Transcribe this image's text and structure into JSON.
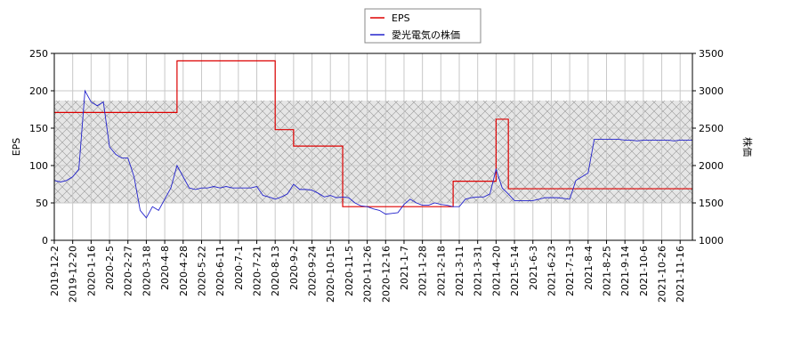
{
  "chart_data": {
    "type": "line",
    "y_label": "EPS",
    "y2_label": "株価",
    "legend": "top",
    "grid": true,
    "ylim": [
      0,
      250
    ],
    "yticks": [
      0,
      50,
      100,
      150,
      200,
      250
    ],
    "y2lim": [
      1000,
      3500
    ],
    "y2ticks": [
      1000,
      1500,
      2000,
      2500,
      3000,
      3500
    ],
    "categories": [
      "2019-12-2",
      null,
      null,
      "2019-12-20",
      null,
      null,
      "2020-1-16",
      null,
      null,
      "2020-2-5",
      null,
      null,
      "2020-2-27",
      null,
      null,
      "2020-3-18",
      null,
      null,
      "2020-4-8",
      null,
      null,
      "2020-4-28",
      null,
      null,
      "2020-5-22",
      null,
      null,
      "2020-6-11",
      null,
      null,
      "2020-7-1",
      null,
      null,
      "2020-7-21",
      null,
      null,
      "2020-8-13",
      null,
      null,
      "2020-9-2",
      null,
      null,
      "2020-9-24",
      null,
      null,
      "2020-10-15",
      null,
      null,
      "2020-11-5",
      null,
      null,
      "2020-11-26",
      null,
      null,
      "2020-12-16",
      null,
      null,
      "2021-1-7",
      null,
      null,
      "2021-1-28",
      null,
      null,
      "2021-2-18",
      null,
      null,
      "2021-3-11",
      null,
      null,
      "2021-3-31",
      null,
      null,
      "2021-4-20",
      null,
      null,
      "2021-5-14",
      null,
      null,
      "2021-6-3",
      null,
      null,
      "2021-6-23",
      null,
      null,
      "2021-7-13",
      null,
      null,
      "2021-8-4",
      null,
      null,
      "2021-8-25",
      null,
      null,
      "2021-9-14",
      null,
      null,
      "2021-10-6",
      null,
      null,
      "2021-10-26",
      null,
      null,
      "2021-11-16",
      null,
      null
    ],
    "series": [
      {
        "name": "EPS",
        "color": "#dd0000",
        "step": true,
        "values": [
          171,
          171,
          171,
          171,
          171,
          171,
          171,
          171,
          171,
          171,
          171,
          171,
          171,
          171,
          171,
          171,
          171,
          171,
          171,
          171,
          240,
          240,
          240,
          240,
          240,
          240,
          240,
          240,
          240,
          240,
          240,
          240,
          240,
          240,
          240,
          240,
          148,
          148,
          148,
          126,
          126,
          126,
          126,
          126,
          126,
          126,
          126,
          45,
          45,
          45,
          45,
          45,
          45,
          45,
          45,
          45,
          45,
          45,
          45,
          45,
          45,
          45,
          45,
          45,
          45,
          79,
          79,
          79,
          79,
          79,
          79,
          79,
          162,
          162,
          69,
          69,
          69,
          69,
          69,
          69,
          69,
          69,
          69,
          69,
          69,
          69,
          69,
          69,
          69,
          69,
          69,
          69,
          69,
          69,
          69,
          69,
          69,
          69,
          69,
          69,
          69,
          69,
          69,
          69,
          69
        ]
      },
      {
        "name": "愛光電気の株価",
        "color": "#2222cc",
        "axis": "y2",
        "values": [
          1800,
          1780,
          1800,
          1850,
          1950,
          3000,
          2850,
          2800,
          2850,
          2250,
          2150,
          2100,
          2100,
          1850,
          1400,
          1300,
          1450,
          1400,
          1550,
          1700,
          2000,
          1850,
          1700,
          1680,
          1700,
          1700,
          1720,
          1700,
          1720,
          1700,
          1700,
          1700,
          1700,
          1720,
          1600,
          1580,
          1550,
          1580,
          1620,
          1750,
          1680,
          1680,
          1670,
          1630,
          1580,
          1600,
          1570,
          1580,
          1570,
          1500,
          1460,
          1450,
          1420,
          1400,
          1350,
          1360,
          1370,
          1480,
          1550,
          1500,
          1470,
          1470,
          1500,
          1480,
          1470,
          1450,
          1450,
          1550,
          1570,
          1580,
          1580,
          1620,
          1950,
          1700,
          1620,
          1530,
          1530,
          1530,
          1530,
          1550,
          1570,
          1570,
          1570,
          1560,
          1550,
          1800,
          1850,
          1900,
          2350,
          2350,
          2350,
          2350,
          2350,
          2340,
          2340,
          2330,
          2340,
          2340,
          2340,
          2340,
          2340,
          2330,
          2340,
          2340,
          2340
        ]
      }
    ]
  }
}
